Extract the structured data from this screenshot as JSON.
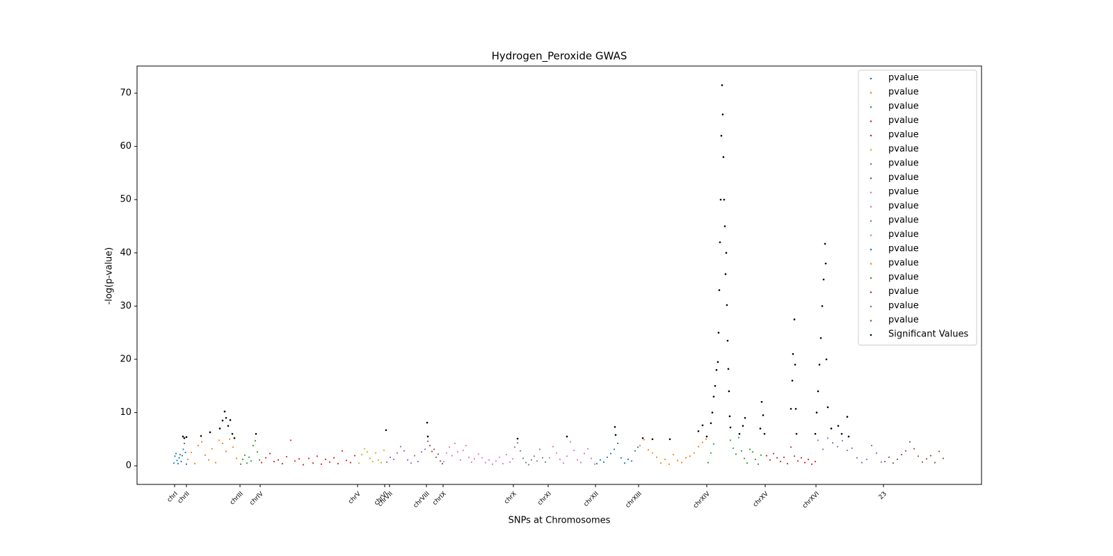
{
  "chart_data": {
    "type": "scatter",
    "title": "Hydrogen_Peroxide GWAS",
    "xlabel": "SNPs at Chromosomes",
    "ylabel": "-log(p-value)",
    "xlim": [
      -530,
      11610
    ],
    "ylim": [
      -3.5,
      75.1
    ],
    "yticks": [
      0,
      10,
      20,
      30,
      40,
      50,
      60,
      70
    ],
    "xticks": [
      {
        "value": 10,
        "label": "chrI"
      },
      {
        "value": 180,
        "label": "chrII"
      },
      {
        "value": 950,
        "label": "chrIII"
      },
      {
        "value": 1240,
        "label": "chrIV"
      },
      {
        "value": 2640,
        "label": "chrV"
      },
      {
        "value": 3030,
        "label": "chrVI"
      },
      {
        "value": 3100,
        "label": "chrVII"
      },
      {
        "value": 3630,
        "label": "chrVIII"
      },
      {
        "value": 3870,
        "label": "chrIX"
      },
      {
        "value": 4880,
        "label": "chrX"
      },
      {
        "value": 5380,
        "label": "chrXI"
      },
      {
        "value": 6060,
        "label": "chrXII"
      },
      {
        "value": 6680,
        "label": "chrXIII"
      },
      {
        "value": 7660,
        "label": "chrXIV"
      },
      {
        "value": 8500,
        "label": "chrXV"
      },
      {
        "value": 9230,
        "label": "chrXVI"
      },
      {
        "value": 10200,
        "label": "23"
      }
    ],
    "legend": "upper right",
    "series": [
      {
        "name": "pvalue",
        "color": "#1f77b4",
        "x": [
          0,
          15,
          30,
          45,
          60,
          75,
          90,
          105,
          120,
          135,
          150,
          165,
          180
        ],
        "y": [
          0.5,
          1.8,
          2.3,
          1,
          0.4,
          1.5,
          2.1,
          0.8,
          1.9,
          3.1,
          4.2,
          2.5,
          0.3
        ]
      },
      {
        "name": "pvalue",
        "color": "#ff7f0e",
        "x": [
          200,
          250,
          300,
          350,
          400,
          450,
          500,
          550,
          600,
          650,
          700,
          750,
          800,
          850,
          900
        ],
        "y": [
          1.2,
          2.5,
          0.4,
          3.8,
          4.5,
          2,
          1.1,
          3.2,
          0.6,
          4.8,
          4.2,
          2.7,
          5,
          3.5,
          1.4
        ]
      },
      {
        "name": "pvalue",
        "color": "#2ca02c",
        "x": [
          960,
          990,
          1020,
          1050,
          1080,
          1110,
          1140,
          1170,
          1200,
          1230
        ],
        "y": [
          0.3,
          1.2,
          2,
          0.5,
          1.6,
          0.9,
          3.8,
          4.7,
          2.6,
          1.1
        ]
      },
      {
        "name": "pvalue",
        "color": "#d62728",
        "x": [
          1260,
          1320,
          1380,
          1440,
          1500,
          1560,
          1620,
          1680,
          1740,
          1800,
          1860
        ],
        "y": [
          0.6,
          1.5,
          2.3,
          0.8,
          1.1,
          0.4,
          1.7,
          4.8,
          0.9,
          1.3,
          0.2
        ]
      },
      {
        "name": "pvalue",
        "color": "#d62728",
        "x": [
          1940,
          2000,
          2060,
          2120,
          2180,
          2240,
          2300,
          2360,
          2420,
          2480,
          2540,
          2600
        ],
        "y": [
          1.4,
          0.5,
          1.8,
          0.3,
          1.2,
          0.7,
          1.5,
          0.4,
          2.8,
          1,
          0.6,
          1.9
        ]
      },
      {
        "name": "pvalue",
        "color": "#bcbd22",
        "x": [
          2660,
          2700,
          2740,
          2780,
          2820,
          2860,
          2900,
          2940,
          2980,
          3020
        ],
        "y": [
          0.5,
          2.1,
          3.2,
          2.6,
          1.4,
          0.8,
          2.4,
          1.1,
          0.6,
          2.9
        ]
      },
      {
        "name": "pvalue",
        "color": "#9467bd",
        "x": [
          3060,
          3110,
          3160,
          3210,
          3260,
          3310,
          3360,
          3410,
          3460,
          3510,
          3560,
          3610
        ],
        "y": [
          0.7,
          1.6,
          1.2,
          2.4,
          3.6,
          2.8,
          1.1,
          0.5,
          1.9,
          0.8,
          2.6,
          3.1
        ]
      },
      {
        "name": "pvalue",
        "color": "#8c564b",
        "x": [
          3650,
          3680,
          3710,
          3740,
          3770,
          3800,
          3830,
          3860
        ],
        "y": [
          4.6,
          3.8,
          2.7,
          3.1,
          1.6,
          2.2,
          0.9,
          0.4
        ]
      },
      {
        "name": "pvalue",
        "color": "#e377c2",
        "x": [
          3880,
          3920,
          3960,
          4000,
          4040,
          4080,
          4120,
          4160,
          4200,
          4240,
          4280,
          4320
        ],
        "y": [
          0.8,
          2.4,
          3.5,
          1.9,
          4.2,
          2.6,
          1.1,
          2.9,
          3.8,
          1.6,
          0.7,
          1.3
        ]
      },
      {
        "name": "pvalue",
        "color": "#e377c2",
        "x": [
          4380,
          4430,
          4480,
          4530,
          4580,
          4630,
          4680,
          4730,
          4780,
          4830,
          4870
        ],
        "y": [
          2.2,
          1.5,
          0.6,
          1.1,
          0.3,
          0.9,
          1.6,
          0.4,
          2.1,
          0.7,
          1.3
        ]
      },
      {
        "name": "pvalue",
        "color": "#7f7f7f",
        "x": [
          4900,
          4940,
          4980,
          5020,
          5060,
          5100,
          5140,
          5180,
          5220,
          5260,
          5300,
          5340
        ],
        "y": [
          3.5,
          4.3,
          2.8,
          1.4,
          0.6,
          0.2,
          1.1,
          1.8,
          0.9,
          3.1,
          1.5,
          0.7
        ]
      },
      {
        "name": "pvalue",
        "color": "#e377c2",
        "x": [
          5400,
          5450,
          5500,
          5550,
          5600,
          5650,
          5700,
          5750,
          5800,
          5850,
          5900,
          5950,
          6000,
          6050
        ],
        "y": [
          1.5,
          3.6,
          2.4,
          1.2,
          0.5,
          1.8,
          4.5,
          2.9,
          1.1,
          0.6,
          2.3,
          3.2,
          1.4,
          0.3
        ]
      },
      {
        "name": "pvalue",
        "color": "#1f77b4",
        "x": [
          6080,
          6130,
          6180,
          6230,
          6280,
          6330,
          6380,
          6430,
          6480,
          6530,
          6580,
          6630,
          6670
        ],
        "y": [
          0.4,
          1.1,
          0.7,
          1.6,
          2.3,
          3.1,
          4.2,
          1.5,
          0.5,
          1.2,
          0.9,
          2.8,
          3.5
        ]
      },
      {
        "name": "pvalue",
        "color": "#ff7f0e",
        "x": [
          6700,
          6760,
          6820,
          6880,
          6940,
          7000,
          7060,
          7120,
          7180,
          7240,
          7300,
          7360,
          7420,
          7480,
          7540,
          7600,
          7650
        ],
        "y": [
          3.8,
          4.9,
          3,
          2.4,
          1.6,
          0.5,
          1.2,
          0.3,
          2.1,
          1,
          0.6,
          1.5,
          1.8,
          2.4,
          3.6,
          4.4,
          5
        ]
      },
      {
        "name": "pvalue",
        "color": "#2ca02c",
        "x": [
          7680,
          7720,
          7760,
          8000,
          8040,
          8080,
          8120,
          8160,
          8200,
          8240,
          8280,
          8320,
          8360,
          8400,
          8440
        ],
        "y": [
          0.6,
          2.4,
          4.1,
          4.8,
          3.3,
          2.2,
          5.3,
          2.8,
          1.4,
          0.5,
          3.1,
          2.6,
          1.2,
          0.3,
          2
        ]
      },
      {
        "name": "pvalue",
        "color": "#d62728",
        "x": [
          8520,
          8570,
          8620,
          8670,
          8720,
          8770,
          8820,
          8870,
          8920,
          8970,
          9020,
          9070,
          9120,
          9170,
          9220
        ],
        "y": [
          1.9,
          1.1,
          2.3,
          1.5,
          0.8,
          1.6,
          0.4,
          3.5,
          1.8,
          0.9,
          1.5,
          0.6,
          1.2,
          0.3,
          0.8
        ]
      },
      {
        "name": "pvalue",
        "color": "#9467bd",
        "x": [
          9260,
          9330,
          9400,
          9470,
          9540,
          9610,
          9680,
          9750,
          9820,
          9890,
          9960,
          10030,
          10100,
          10170
        ],
        "y": [
          4.8,
          3.1,
          5.2,
          4.3,
          3.6,
          4.7,
          2.9,
          3.3,
          1.5,
          0.6,
          1.2,
          3.8,
          2.4,
          0.7
        ]
      },
      {
        "name": "pvalue",
        "color": "#8c564b",
        "x": [
          10220,
          10280,
          10340,
          10400,
          10460,
          10520,
          10580,
          10640,
          10700,
          10760,
          10820,
          10880,
          10940,
          11000,
          11060
        ],
        "y": [
          0.8,
          1.6,
          0.5,
          1.2,
          2.1,
          2.8,
          4.5,
          3.2,
          1.8,
          0.7,
          1.3,
          1.9,
          0.6,
          2.7,
          1.4
        ]
      },
      {
        "name": "Significant Values",
        "color": "#000000",
        "x": [
          130,
          150,
          180,
          390,
          520,
          660,
          700,
          730,
          750,
          780,
          810,
          840,
          870,
          1180,
          3050,
          3640,
          3650,
          4940,
          5650,
          6340,
          6350,
          6740,
          6880,
          7130,
          7540,
          7600,
          7660,
          7720,
          7740,
          7760,
          7780,
          7800,
          7820,
          7830,
          7840,
          7850,
          7860,
          7870,
          7880,
          7890,
          7900,
          7910,
          7920,
          7930,
          7940,
          7950,
          7960,
          7970,
          7980,
          7990,
          8000,
          8130,
          8180,
          8210,
          8430,
          8450,
          8470,
          8490,
          8870,
          8890,
          8900,
          8920,
          8930,
          8940,
          8950,
          9220,
          9240,
          9260,
          9280,
          9300,
          9320,
          9340,
          9360,
          9370,
          9380,
          9400,
          9450,
          9550,
          9600,
          9680,
          9700
        ],
        "y": [
          5.5,
          5.2,
          5.4,
          5.6,
          6.3,
          7,
          8.5,
          10.2,
          9,
          7.5,
          8.6,
          6,
          5.2,
          6,
          6.7,
          8.1,
          5.5,
          5.1,
          5.5,
          7.3,
          5.8,
          5.2,
          5,
          5,
          6.5,
          7.6,
          5.5,
          8,
          10,
          13,
          15,
          18,
          19.5,
          25,
          33,
          42,
          50,
          62,
          71.5,
          66,
          58,
          50,
          45,
          36,
          40,
          30.2,
          23.5,
          18.2,
          14,
          9.3,
          7.2,
          6,
          7.5,
          9,
          7,
          12,
          9.5,
          6,
          10.7,
          16,
          21,
          27.5,
          19,
          10.7,
          6,
          6,
          10,
          14,
          19,
          24,
          30,
          35,
          41.7,
          38,
          20,
          11,
          7,
          7.5,
          6,
          9.2,
          5.5
        ]
      }
    ]
  }
}
